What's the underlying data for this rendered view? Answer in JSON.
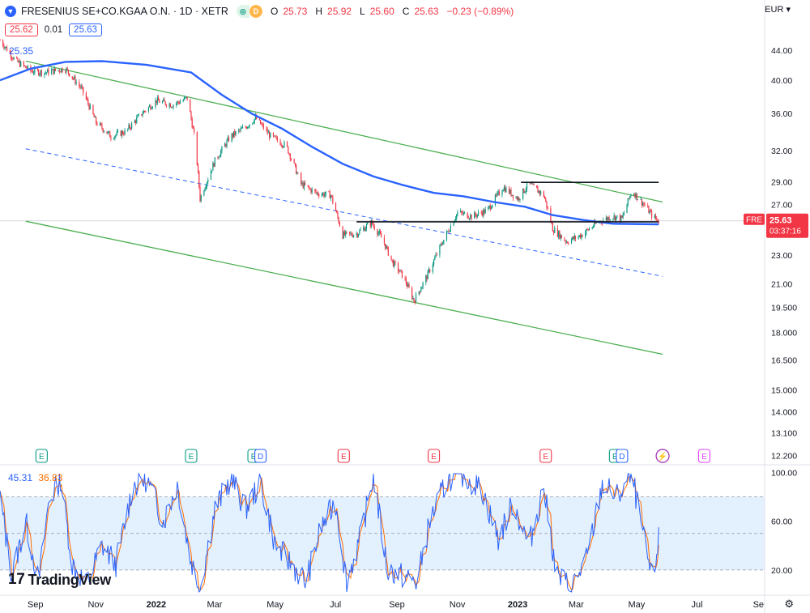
{
  "header": {
    "symbol": "FRESENIUS SE+CO.KGAA O.N. · 1D · XETR",
    "badge_d": "D",
    "ohlc": {
      "O": "25.73",
      "H": "25.92",
      "L": "25.60",
      "C": "25.63",
      "chg": "−0.23 (−0.89%)"
    },
    "bid": "25.62",
    "spread": "0.01",
    "ask": "25.63",
    "currency": "EUR"
  },
  "colors": {
    "up": "#089981",
    "down": "#f23645",
    "ma": "#2962ff",
    "channel": "#4caf50",
    "k_line": "#2962ff",
    "d_line": "#ff6d00",
    "band": "#e3f0fd",
    "level": "#131722"
  },
  "chart_data": [
    {
      "type": "line",
      "title": "FRESENIUS SE+CO.KGAA O.N. · 1D · XETR",
      "y_scale": "log",
      "ylim": [
        11.9,
        48
      ],
      "x_ticks": [
        "Sep",
        "Nov",
        "2022",
        "Mar",
        "May",
        "Jul",
        "Sep",
        "Nov",
        "2023",
        "Mar",
        "May",
        "Jul",
        "Se"
      ],
      "y_ticks": [
        "44.00",
        "40.00",
        "36.00",
        "32.00",
        "29.00",
        "27.00",
        "25.00",
        "23.00",
        "21.00",
        "19.500",
        "18.000",
        "16.500",
        "15.000",
        "14.000",
        "13.100",
        "12.200"
      ],
      "price_path": [
        [
          "2021-08-20",
          45.4
        ],
        [
          "2021-09-05",
          42.5
        ],
        [
          "2021-09-20",
          41.2
        ],
        [
          "2021-10-05",
          41.0
        ],
        [
          "2021-10-25",
          41.5
        ],
        [
          "2021-11-10",
          39.0
        ],
        [
          "2021-11-25",
          35.0
        ],
        [
          "2021-12-10",
          33.5
        ],
        [
          "2021-12-25",
          34.0
        ],
        [
          "2022-01-10",
          36.0
        ],
        [
          "2022-01-25",
          37.5
        ],
        [
          "2022-02-10",
          37.0
        ],
        [
          "2022-02-25",
          37.8
        ],
        [
          "2022-03-05",
          33.0
        ],
        [
          "2022-03-10",
          27.5
        ],
        [
          "2022-03-25",
          31.0
        ],
        [
          "2022-04-10",
          33.5
        ],
        [
          "2022-04-25",
          34.5
        ],
        [
          "2022-05-05",
          35.5
        ],
        [
          "2022-05-20",
          33.5
        ],
        [
          "2022-06-05",
          32.5
        ],
        [
          "2022-06-20",
          28.8
        ],
        [
          "2022-07-05",
          28.0
        ],
        [
          "2022-07-20",
          27.8
        ],
        [
          "2022-08-01",
          24.5
        ],
        [
          "2022-08-15",
          24.6
        ],
        [
          "2022-08-30",
          25.5
        ],
        [
          "2022-09-10",
          24.2
        ],
        [
          "2022-09-20",
          22.5
        ],
        [
          "2022-10-01",
          21.5
        ],
        [
          "2022-10-12",
          19.9
        ],
        [
          "2022-10-25",
          21.5
        ],
        [
          "2022-11-10",
          24.0
        ],
        [
          "2022-11-25",
          26.3
        ],
        [
          "2022-12-10",
          26.0
        ],
        [
          "2022-12-25",
          26.5
        ],
        [
          "2023-01-10",
          28.5
        ],
        [
          "2023-01-25",
          27.5
        ],
        [
          "2023-02-05",
          28.8
        ],
        [
          "2023-02-20",
          27.8
        ],
        [
          "2023-03-01",
          25.0
        ],
        [
          "2023-03-15",
          24.0
        ],
        [
          "2023-03-30",
          24.5
        ],
        [
          "2023-04-15",
          25.5
        ],
        [
          "2023-04-30",
          26.0
        ],
        [
          "2023-05-10",
          25.8
        ],
        [
          "2023-05-20",
          28.2
        ],
        [
          "2023-06-01",
          27.0
        ],
        [
          "2023-06-10",
          26.0
        ],
        [
          "2023-06-16",
          25.63
        ]
      ],
      "moving_average": [
        [
          "2021-08-20",
          40.0
        ],
        [
          "2021-09-20",
          41.5
        ],
        [
          "2021-10-25",
          42.4
        ],
        [
          "2021-12-01",
          42.5
        ],
        [
          "2022-01-15",
          42.0
        ],
        [
          "2022-03-01",
          41.0
        ],
        [
          "2022-04-01",
          38.2
        ],
        [
          "2022-05-01",
          36.0
        ],
        [
          "2022-06-01",
          34.3
        ],
        [
          "2022-07-01",
          32.4
        ],
        [
          "2022-08-01",
          30.7
        ],
        [
          "2022-09-01",
          29.5
        ],
        [
          "2022-10-01",
          28.7
        ],
        [
          "2022-11-01",
          28.0
        ],
        [
          "2022-12-01",
          27.7
        ],
        [
          "2023-01-01",
          27.2
        ],
        [
          "2023-02-01",
          26.8
        ],
        [
          "2023-03-01",
          26.1
        ],
        [
          "2023-04-01",
          25.7
        ],
        [
          "2023-05-01",
          25.4
        ],
        [
          "2023-06-16",
          25.35
        ]
      ],
      "ma_value": "25.35",
      "channel_lines": [
        {
          "from": [
            "2021-09-15",
            42.5
          ],
          "to": [
            "2023-06-20",
            27.2
          ],
          "style": "solid"
        },
        {
          "from": [
            "2021-09-15",
            32.2
          ],
          "to": [
            "2023-06-20",
            21.5
          ],
          "style": "dashed"
        },
        {
          "from": [
            "2021-09-15",
            25.6
          ],
          "to": [
            "2023-06-20",
            16.8
          ],
          "style": "solid"
        }
      ],
      "horizontal_levels": [
        {
          "from": "2022-08-15",
          "to": "2023-06-16",
          "value": 25.55
        },
        {
          "from": "2023-01-28",
          "to": "2023-06-16",
          "value": 28.95
        }
      ],
      "last_price": {
        "label": "FRE",
        "value": "25.63",
        "countdown": "03:37:16"
      },
      "events": [
        {
          "date": "2021-10-01",
          "label": "E"
        },
        {
          "date": "2022-03-01",
          "label": "E"
        },
        {
          "date": "2022-05-03",
          "label": "E"
        },
        {
          "date": "2022-05-10",
          "label": "D"
        },
        {
          "date": "2022-08-02",
          "label": "E"
        },
        {
          "date": "2022-11-01",
          "label": "E"
        },
        {
          "date": "2023-02-22",
          "label": "E"
        },
        {
          "date": "2023-05-03",
          "label": "E"
        },
        {
          "date": "2023-05-10",
          "label": "D"
        },
        {
          "date": "2023-06-20",
          "label": "⚡"
        },
        {
          "date": "2023-08-01",
          "label": "E"
        }
      ]
    },
    {
      "type": "line",
      "title": "",
      "series_values": {
        "k": "45.31",
        "d": "36.83"
      },
      "ylim": [
        0,
        105
      ],
      "band": [
        20,
        80
      ],
      "y_ticks": [
        "100.00",
        "60.00",
        "20.00"
      ],
      "k_path": [
        [
          "2021-08-20",
          80
        ],
        [
          "2021-09-01",
          15
        ],
        [
          "2021-09-15",
          60
        ],
        [
          "2021-09-28",
          10
        ],
        [
          "2021-10-08",
          75
        ],
        [
          "2021-10-20",
          95
        ],
        [
          "2021-11-01",
          25
        ],
        [
          "2021-11-15",
          8
        ],
        [
          "2021-12-01",
          40
        ],
        [
          "2021-12-15",
          25
        ],
        [
          "2022-01-01",
          88
        ],
        [
          "2022-01-15",
          95
        ],
        [
          "2022-02-01",
          60
        ],
        [
          "2022-02-15",
          90
        ],
        [
          "2022-02-28",
          30
        ],
        [
          "2022-03-10",
          5
        ],
        [
          "2022-03-25",
          70
        ],
        [
          "2022-04-10",
          95
        ],
        [
          "2022-04-25",
          70
        ],
        [
          "2022-05-10",
          92
        ],
        [
          "2022-05-25",
          40
        ],
        [
          "2022-06-10",
          25
        ],
        [
          "2022-06-25",
          10
        ],
        [
          "2022-07-10",
          55
        ],
        [
          "2022-07-25",
          75
        ],
        [
          "2022-08-05",
          10
        ],
        [
          "2022-08-20",
          50
        ],
        [
          "2022-09-01",
          98
        ],
        [
          "2022-09-15",
          20
        ],
        [
          "2022-10-01",
          15
        ],
        [
          "2022-10-15",
          10
        ],
        [
          "2022-10-28",
          60
        ],
        [
          "2022-11-15",
          95
        ],
        [
          "2022-12-01",
          98
        ],
        [
          "2022-12-20",
          85
        ],
        [
          "2023-01-05",
          45
        ],
        [
          "2023-01-20",
          75
        ],
        [
          "2023-02-05",
          40
        ],
        [
          "2023-02-20",
          88
        ],
        [
          "2023-03-05",
          15
        ],
        [
          "2023-03-20",
          6
        ],
        [
          "2023-04-05",
          30
        ],
        [
          "2023-04-20",
          90
        ],
        [
          "2023-05-05",
          80
        ],
        [
          "2023-05-20",
          98
        ],
        [
          "2023-06-01",
          45
        ],
        [
          "2023-06-10",
          10
        ],
        [
          "2023-06-16",
          45.31
        ]
      ]
    }
  ],
  "branding": {
    "name": "TradingView",
    "mark": "17"
  }
}
